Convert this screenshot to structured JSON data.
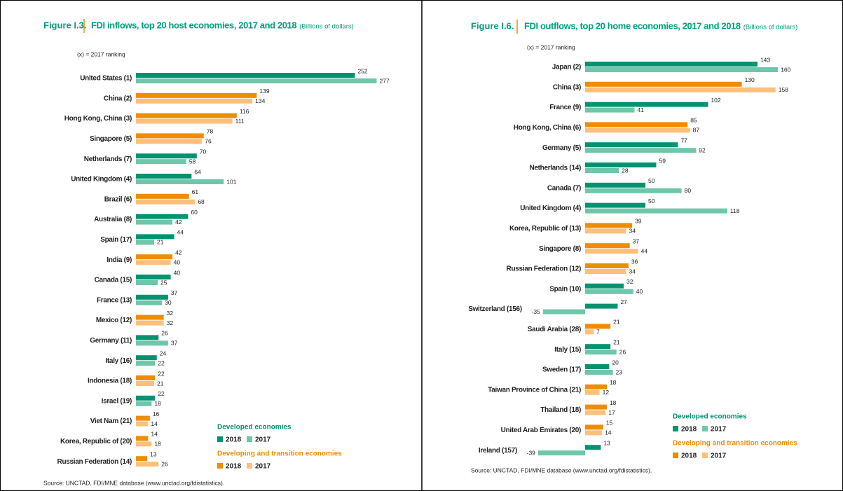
{
  "chart_data": [
    {
      "type": "bar",
      "orientation": "horizontal",
      "figure_label": "Figure I.3.",
      "title": "FDI inflows, top 20 host economies, 2017 and 2018",
      "unit": "(Billions of dollars)",
      "note": "(x) = 2017 ranking",
      "categories": [
        "United States (1)",
        "China (2)",
        "Hong Kong, China (3)",
        "Singapore (5)",
        "Netherlands (7)",
        "United Kingdom (4)",
        "Brazil (6)",
        "Australia (8)",
        "Spain (17)",
        "India (9)",
        "Canada (15)",
        "France (13)",
        "Mexico (12)",
        "Germany (11)",
        "Italy (16)",
        "Indonesia (18)",
        "Israel (19)",
        "Viet Nam (21)",
        "Korea, Republic of (20)",
        "Russian Federation (14)"
      ],
      "category_groups": [
        "Developed economies",
        "Developing and transition economies",
        "Developing and transition economies",
        "Developing and transition economies",
        "Developed economies",
        "Developed economies",
        "Developing and transition economies",
        "Developed economies",
        "Developed economies",
        "Developing and transition economies",
        "Developed economies",
        "Developed economies",
        "Developing and transition economies",
        "Developed economies",
        "Developed economies",
        "Developing and transition economies",
        "Developed economies",
        "Developing and transition economies",
        "Developing and transition economies",
        "Developing and transition economies"
      ],
      "series": [
        {
          "name": "2018",
          "values": [
            252,
            139,
            116,
            78,
            70,
            64,
            61,
            60,
            44,
            42,
            40,
            37,
            32,
            26,
            24,
            22,
            22,
            16,
            14,
            13
          ]
        },
        {
          "name": "2017",
          "values": [
            277,
            134,
            111,
            76,
            58,
            101,
            68,
            42,
            21,
            40,
            25,
            30,
            32,
            37,
            22,
            21,
            18,
            14,
            18,
            26
          ]
        }
      ],
      "legend": [
        {
          "name": "Developed economies",
          "colors": [
            "#00936f",
            "#6fc6aa"
          ]
        },
        {
          "name": "Developing and transition economies",
          "colors": [
            "#f08c00",
            "#fcc07c"
          ]
        }
      ],
      "source": "Source: UNCTAD, FDI/MNE database (www.unctad.org/fdistatistics)."
    },
    {
      "type": "bar",
      "orientation": "horizontal",
      "figure_label": "Figure I.6.",
      "title": "FDI outflows, top 20 home economies, 2017 and 2018",
      "unit": "(Billions of dollars)",
      "note": "(x) = 2017 ranking",
      "categories": [
        "Japan (2)",
        "China (3)",
        "France (9)",
        "Hong Kong, China (6)",
        "Germany (5)",
        "Netherlands (14)",
        "Canada (7)",
        "United Kingdom (4)",
        "Korea, Republic of (13)",
        "Singapore (8)",
        "Russian Federation (12)",
        "Spain (10)",
        "Switzerland (156)",
        "Saudi Arabia (28)",
        "Italy (15)",
        "Sweden (17)",
        "Taiwan Province of China (21)",
        "Thailand (18)",
        "United Arab Emirates (20)",
        "Ireland (157)"
      ],
      "category_groups": [
        "Developed economies",
        "Developing and transition economies",
        "Developed economies",
        "Developing and transition economies",
        "Developed economies",
        "Developed economies",
        "Developed economies",
        "Developed economies",
        "Developing and transition economies",
        "Developing and transition economies",
        "Developing and transition economies",
        "Developed economies",
        "Developed economies",
        "Developing and transition economies",
        "Developed economies",
        "Developed economies",
        "Developing and transition economies",
        "Developing and transition economies",
        "Developing and transition economies",
        "Developed economies"
      ],
      "series": [
        {
          "name": "2018",
          "values": [
            143,
            130,
            102,
            85,
            77,
            59,
            50,
            50,
            39,
            37,
            36,
            32,
            27,
            21,
            21,
            20,
            18,
            18,
            15,
            13
          ]
        },
        {
          "name": "2017",
          "values": [
            160,
            158,
            41,
            87,
            92,
            28,
            80,
            118,
            34,
            44,
            34,
            40,
            -35,
            7,
            26,
            23,
            12,
            17,
            14,
            -39
          ]
        }
      ],
      "legend": [
        {
          "name": "Developed economies",
          "colors": [
            "#00936f",
            "#6fc6aa"
          ]
        },
        {
          "name": "Developing and transition economies",
          "colors": [
            "#f08c00",
            "#fcc07c"
          ]
        }
      ],
      "source": "Source: UNCTAD, FDI/MNE database (www.unctad.org/fdistatistics)."
    }
  ]
}
